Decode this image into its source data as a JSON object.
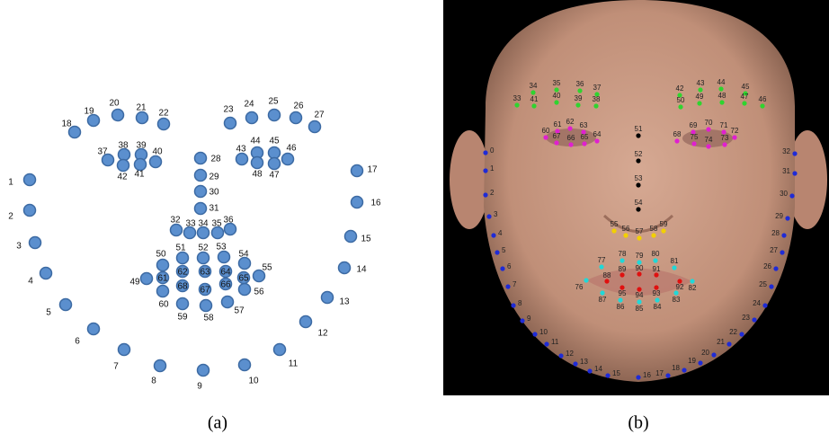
{
  "panel_a": {
    "landmarks": [
      1,
      2,
      3,
      4,
      5,
      6,
      7,
      8,
      9,
      10,
      11,
      12,
      13,
      14,
      15,
      16,
      17,
      18,
      19,
      20,
      21,
      22,
      23,
      24,
      25,
      26,
      27,
      28,
      29,
      30,
      31,
      32,
      33,
      34,
      35,
      36,
      37,
      38,
      39,
      40,
      41,
      42,
      43,
      44,
      45,
      46,
      47,
      48,
      49,
      50,
      51,
      52,
      53,
      54,
      55,
      56,
      57,
      58,
      59,
      60,
      61,
      62,
      63,
      64,
      65,
      66,
      67,
      68
    ],
    "caption": "(a)"
  },
  "panel_b": {
    "landmarks": [
      0,
      1,
      2,
      3,
      4,
      5,
      6,
      7,
      8,
      9,
      10,
      11,
      12,
      13,
      14,
      15,
      16,
      17,
      18,
      19,
      20,
      21,
      22,
      23,
      24,
      25,
      26,
      27,
      28,
      29,
      30,
      31,
      32,
      33,
      34,
      35,
      36,
      37,
      38,
      39,
      40,
      41,
      42,
      43,
      44,
      45,
      46,
      47,
      48,
      49,
      50,
      51,
      52,
      53,
      54,
      55,
      56,
      57,
      58,
      59,
      60,
      61,
      62,
      63,
      64,
      65,
      66,
      67,
      68,
      69,
      70,
      71,
      72,
      73,
      74,
      75,
      76,
      77,
      78,
      79,
      80,
      81,
      82,
      83,
      84,
      85,
      86,
      87,
      88,
      89,
      90,
      91,
      92,
      93,
      94,
      95
    ],
    "caption": "(b)"
  }
}
